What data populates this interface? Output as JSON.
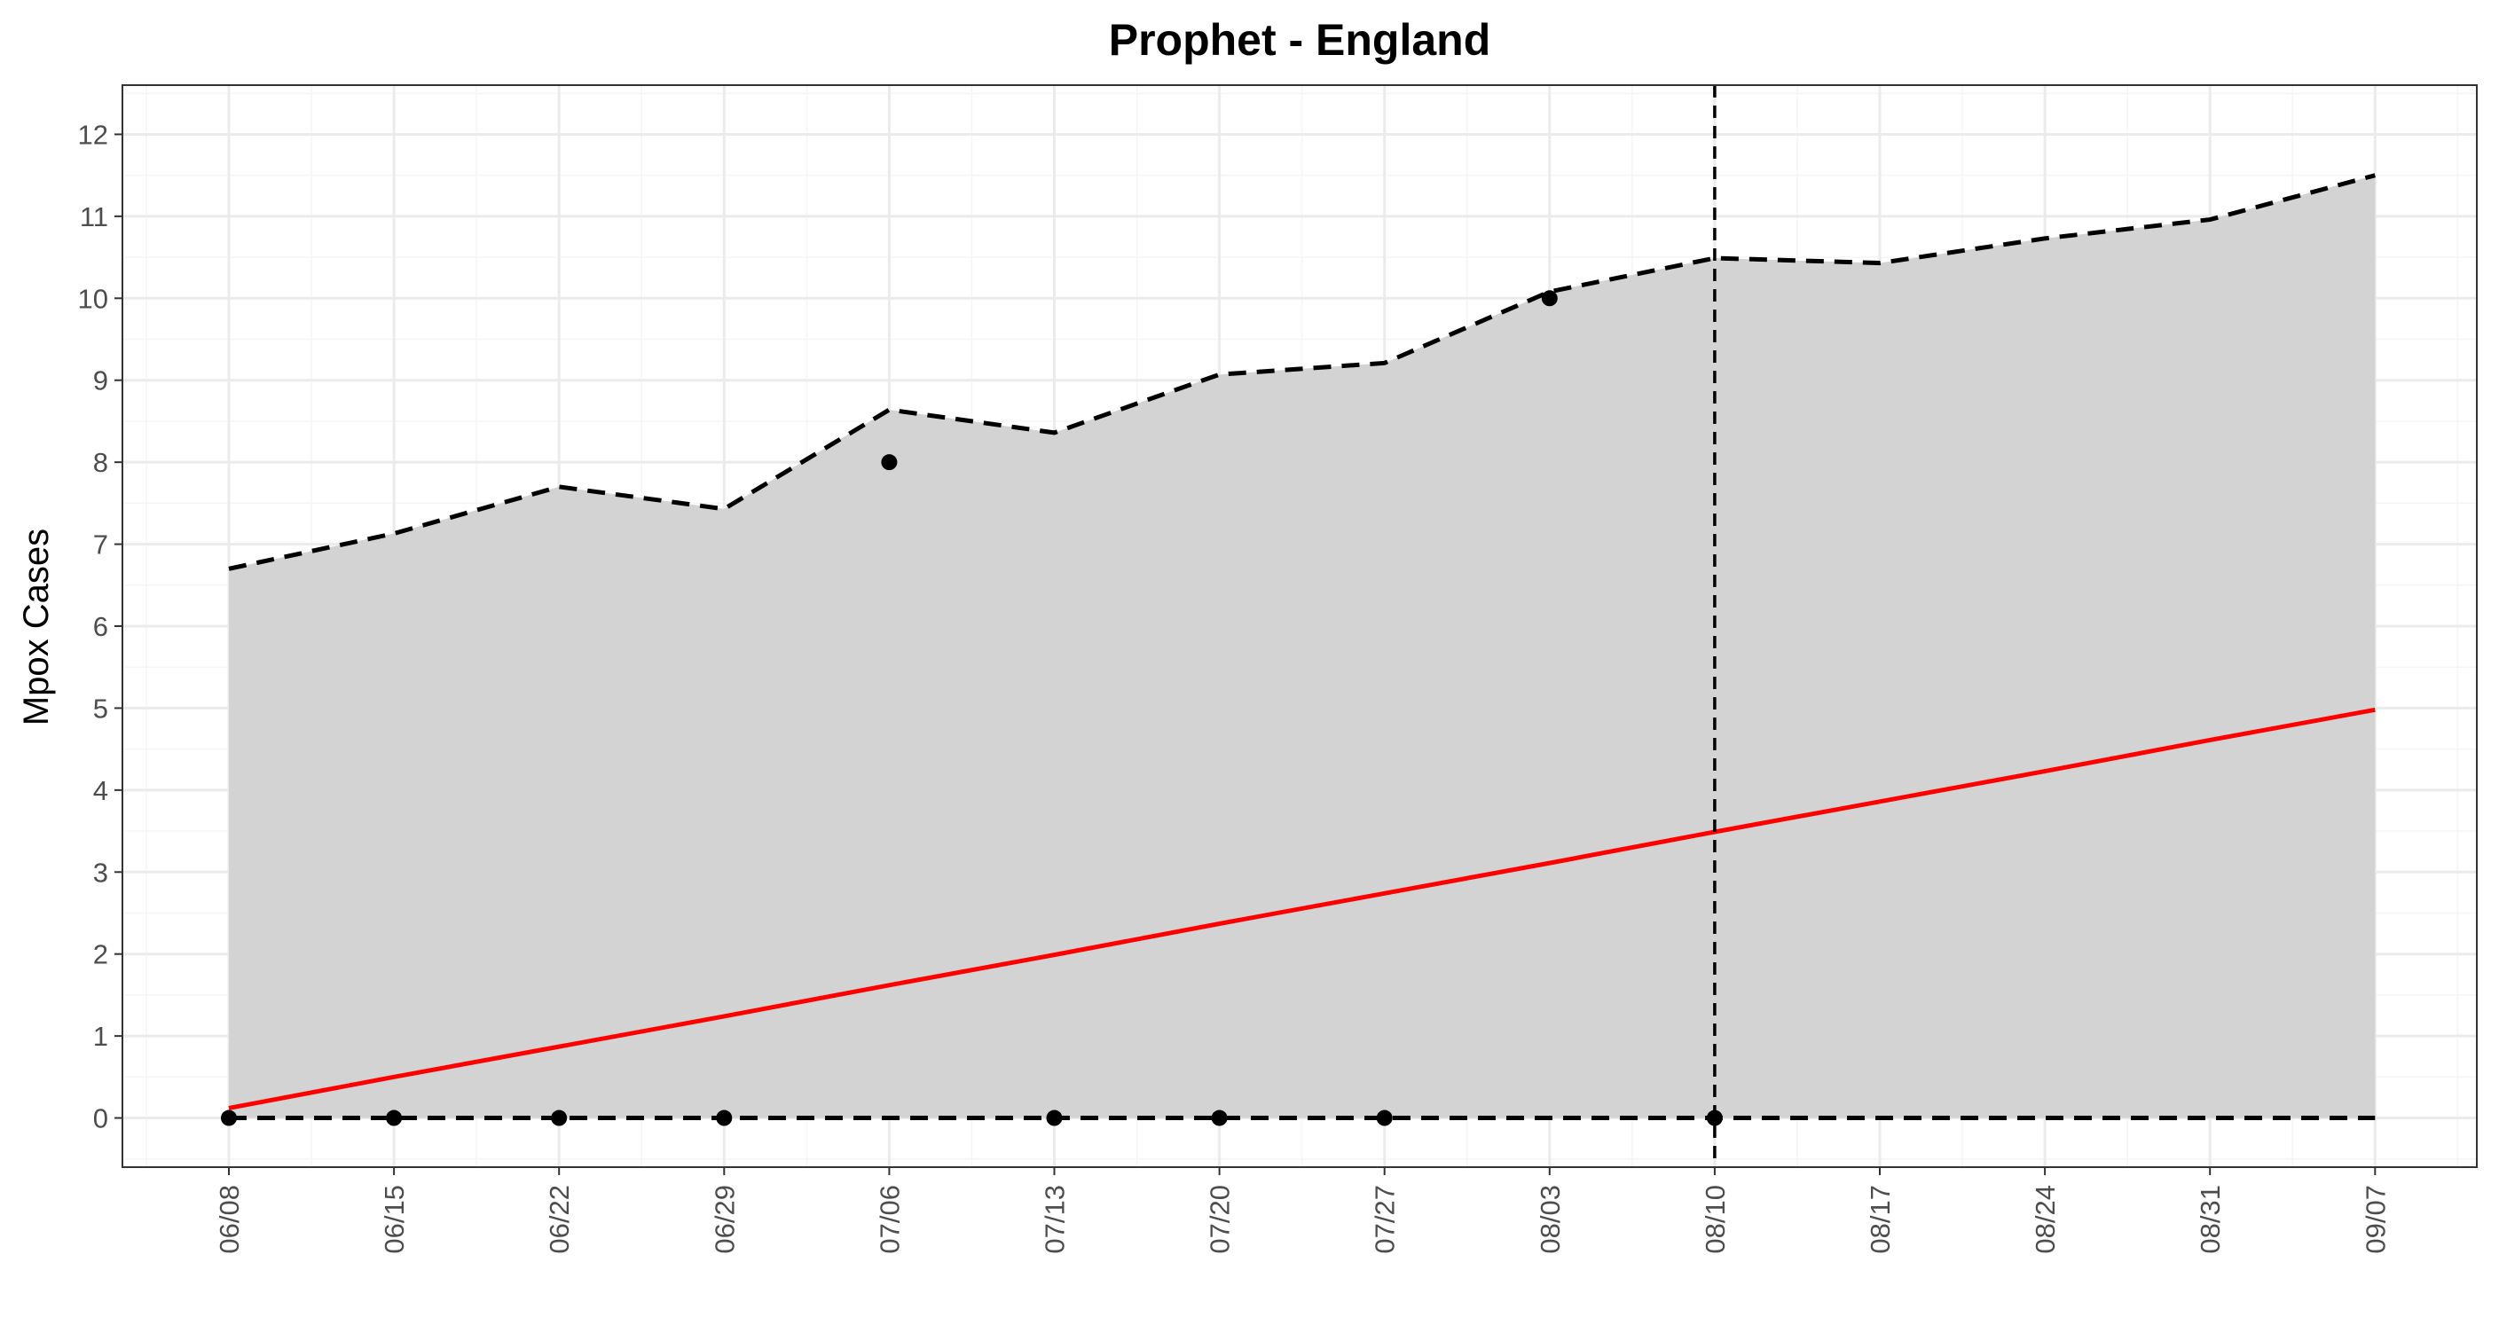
{
  "chart_data": {
    "type": "line",
    "title": "Prophet - England",
    "xlabel": "",
    "ylabel": "Mpox Cases",
    "x": [
      "06/08",
      "06/15",
      "06/22",
      "06/29",
      "07/06",
      "07/13",
      "07/20",
      "07/27",
      "08/03",
      "08/10",
      "08/17",
      "08/24",
      "08/31",
      "09/07"
    ],
    "ylim": [
      -0.6,
      12.6
    ],
    "yticks": [
      "0",
      "1",
      "2",
      "3",
      "4",
      "5",
      "6",
      "7",
      "8",
      "9",
      "10",
      "11",
      "12"
    ],
    "grid": true,
    "observed": {
      "x": [
        "06/08",
        "06/15",
        "06/22",
        "06/29",
        "07/06",
        "07/13",
        "07/20",
        "07/27",
        "08/03",
        "08/10"
      ],
      "values": [
        0,
        0,
        0,
        0,
        8,
        0,
        0,
        0,
        10,
        0
      ]
    },
    "forecast": {
      "values": [
        0.12,
        0.5,
        0.87,
        1.24,
        1.62,
        1.99,
        2.37,
        2.74,
        3.11,
        3.49,
        3.86,
        4.23,
        4.61,
        4.98
      ]
    },
    "upper_bound": {
      "values": [
        6.7,
        7.13,
        7.7,
        7.43,
        8.64,
        8.36,
        9.07,
        9.21,
        10.08,
        10.49,
        10.43,
        10.73,
        10.96,
        11.5
      ]
    },
    "lower_bound": {
      "values": [
        0,
        0,
        0,
        0,
        0,
        0,
        0,
        0,
        0,
        0,
        0,
        0,
        0,
        0
      ]
    },
    "vline_x": "08/10",
    "colors": {
      "band": "#d3d3d3",
      "forecast": "#ff0000",
      "bounds": "#000000",
      "points": "#000000",
      "grid_major": "#ebebeb",
      "grid_minor": "#f5f5f5",
      "axis_text": "#4d4d4d"
    }
  }
}
